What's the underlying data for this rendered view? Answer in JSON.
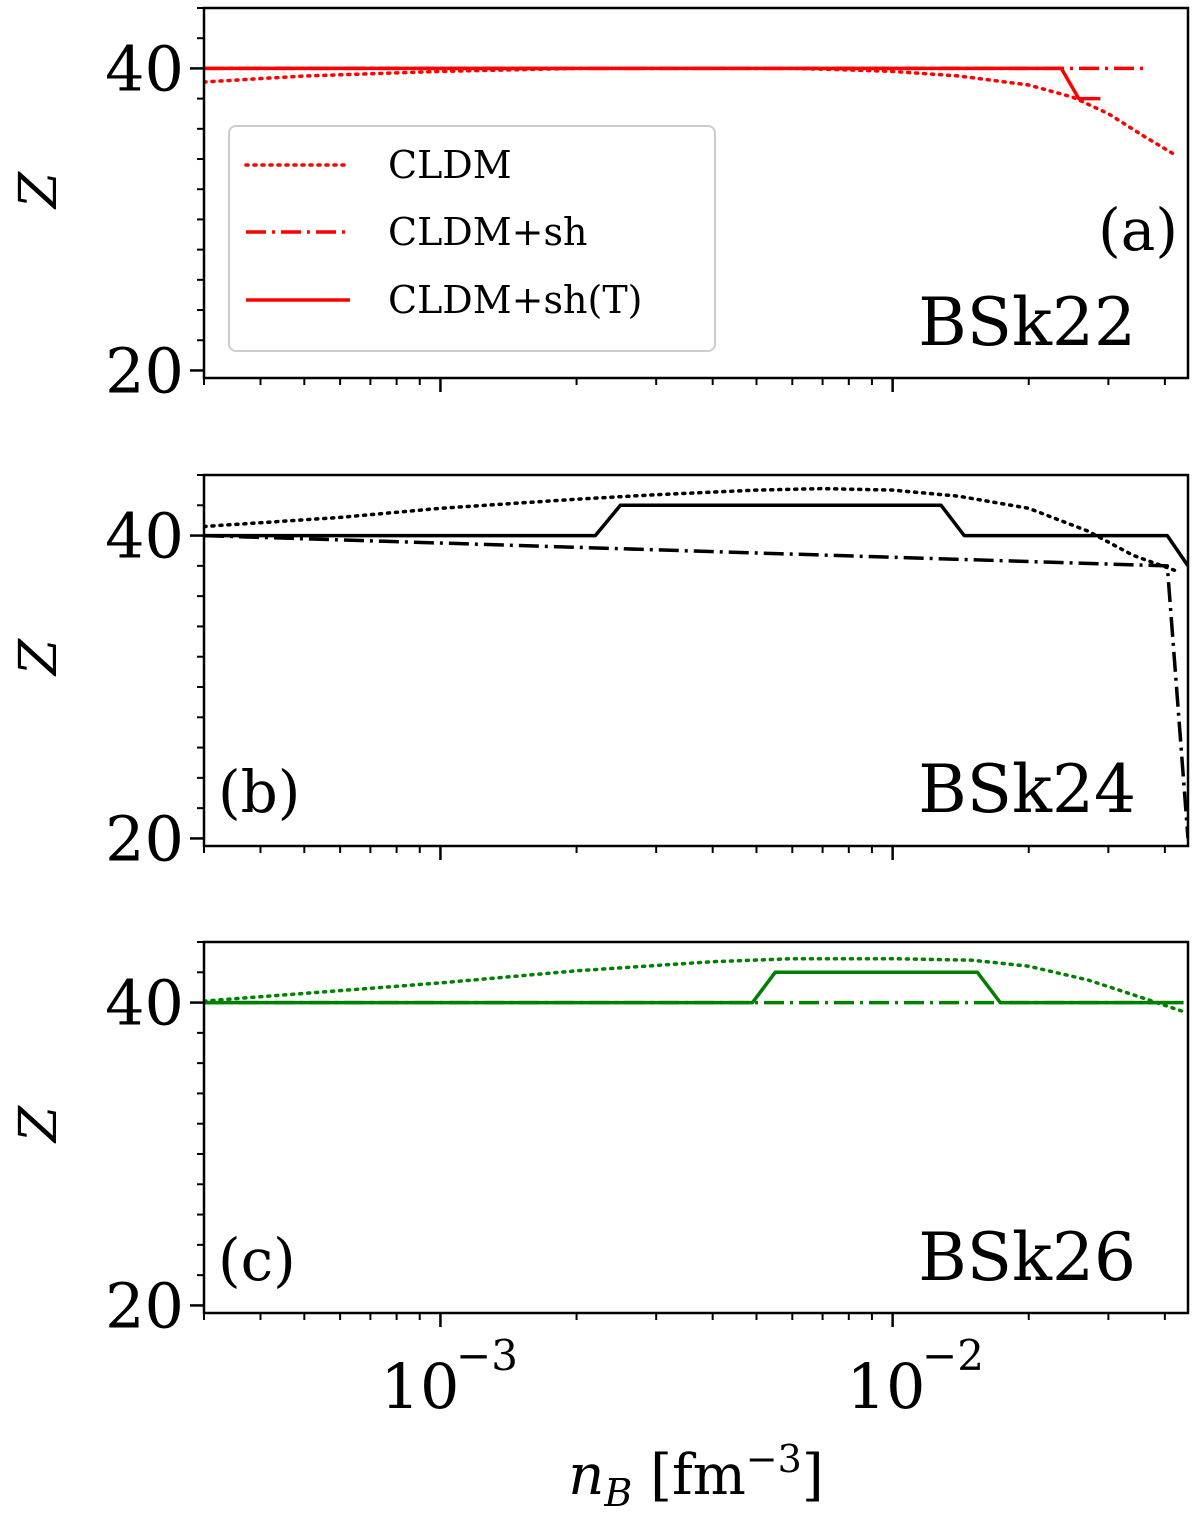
{
  "figure": {
    "xlabel": "n_B [fm^-3]",
    "xlabel_parts": {
      "var": "n",
      "sub": "B",
      "unit_open": " [fm",
      "sup": "−3",
      "unit_close": "]"
    },
    "ylabel": "Z",
    "x_scale": "log",
    "xlim": [
      0.0003,
      0.045
    ],
    "xticks": [
      {
        "value": 0.001,
        "base": "10",
        "exp": "−3"
      },
      {
        "value": 0.01,
        "base": "10",
        "exp": "−2"
      }
    ]
  },
  "chart_data": [
    {
      "type": "line",
      "panel_label": "(a)",
      "model": "BSk22",
      "color": "#ff0000",
      "ylim": [
        19.5,
        44
      ],
      "yticks": [
        20,
        40
      ],
      "legend": {
        "placement": "upper-left",
        "entries": [
          "CLDM",
          "CLDM+sh",
          "CLDM+sh(T)"
        ]
      },
      "series": [
        {
          "name": "CLDM",
          "style": "dotted",
          "x": [
            0.0003,
            0.0005,
            0.001,
            0.002,
            0.004,
            0.006,
            0.008,
            0.01,
            0.014,
            0.02,
            0.025,
            0.03,
            0.036,
            0.042
          ],
          "y": [
            39.1,
            39.5,
            39.8,
            40.0,
            40.0,
            40.0,
            39.9,
            39.8,
            39.5,
            38.9,
            38.1,
            37.0,
            35.5,
            34.3
          ]
        },
        {
          "name": "CLDM+sh",
          "style": "dashdot",
          "x": [
            0.0003,
            0.036
          ],
          "y": [
            40,
            40
          ]
        },
        {
          "name": "CLDM+sh(T)",
          "style": "solid",
          "x": [
            0.0003,
            0.0236,
            0.0258,
            0.0288
          ],
          "y": [
            40,
            40,
            38,
            38
          ]
        }
      ]
    },
    {
      "type": "line",
      "panel_label": "(b)",
      "model": "BSk24",
      "color": "#000000",
      "ylim": [
        19.5,
        44
      ],
      "yticks": [
        20,
        40
      ],
      "series": [
        {
          "name": "CLDM",
          "style": "dotted",
          "x": [
            0.0003,
            0.0006,
            0.001,
            0.002,
            0.003,
            0.005,
            0.007,
            0.01,
            0.014,
            0.02,
            0.027,
            0.034,
            0.043
          ],
          "y": [
            40.6,
            41.2,
            41.8,
            42.4,
            42.7,
            43.0,
            43.1,
            43.0,
            42.6,
            41.8,
            40.3,
            38.7,
            37.6
          ]
        },
        {
          "name": "CLDM+sh",
          "style": "dashdot",
          "x": [
            0.0003,
            0.0405,
            0.045
          ],
          "y": [
            40,
            38,
            20
          ]
        },
        {
          "name": "CLDM+sh(T)",
          "style": "solid",
          "x": [
            0.0003,
            0.0022,
            0.0025,
            0.0128,
            0.0144,
            0.0405,
            0.045
          ],
          "y": [
            40,
            40,
            42,
            42,
            40,
            40,
            38
          ]
        }
      ]
    },
    {
      "type": "line",
      "panel_label": "(c)",
      "model": "BSk26",
      "color": "#008000",
      "ylim": [
        19.5,
        44
      ],
      "yticks": [
        20,
        40
      ],
      "series": [
        {
          "name": "CLDM",
          "style": "dotted",
          "x": [
            0.0003,
            0.001,
            0.002,
            0.004,
            0.006,
            0.01,
            0.015,
            0.02,
            0.027,
            0.035,
            0.044
          ],
          "y": [
            40.1,
            41.3,
            42.1,
            42.7,
            42.9,
            42.9,
            42.8,
            42.4,
            41.5,
            40.4,
            39.4
          ]
        },
        {
          "name": "CLDM+sh",
          "style": "dashdot",
          "x": [
            0.0003,
            0.044
          ],
          "y": [
            40,
            40
          ]
        },
        {
          "name": "CLDM+sh(T)",
          "style": "solid",
          "x": [
            0.0003,
            0.0049,
            0.0055,
            0.0154,
            0.0173,
            0.044
          ],
          "y": [
            40,
            40,
            42,
            42,
            40,
            40
          ]
        }
      ]
    }
  ]
}
